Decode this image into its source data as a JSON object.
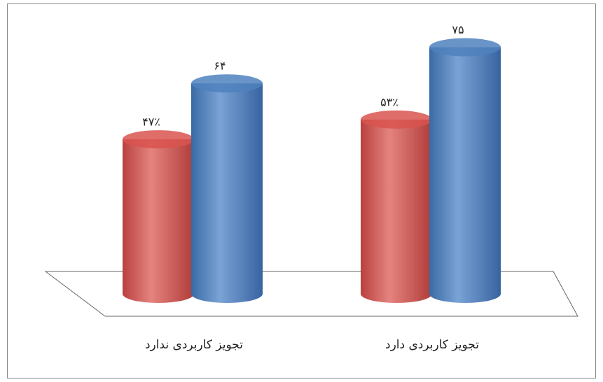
{
  "chart_data": {
    "type": "bar",
    "categories": [
      "تجویز کاربردی ندارد",
      "تجویز کاربردی دارد"
    ],
    "series": [
      {
        "color": "#d9534f",
        "values": [
          47,
          53
        ],
        "value_labels": [
          "۴۷٪",
          "۵۳٪"
        ]
      },
      {
        "color": "#4f81bd",
        "values": [
          64,
          75
        ],
        "value_labels": [
          "۶۴",
          "۷۵"
        ]
      }
    ]
  }
}
